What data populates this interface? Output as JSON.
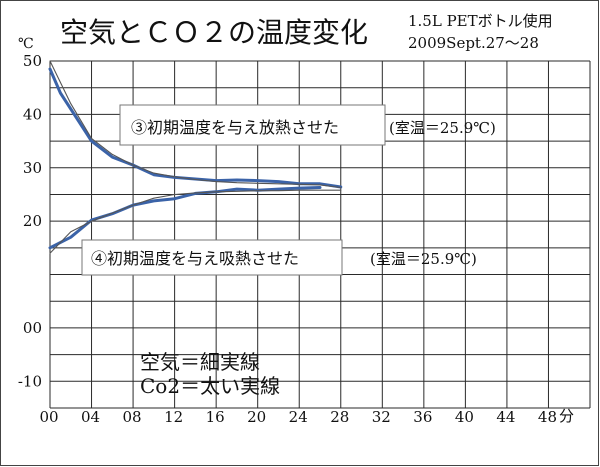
{
  "chart_data": {
    "type": "line",
    "title": "空気とＣＯ２の温度変化",
    "subtitle_lines": [
      "1.5L PETボトル使用",
      "2009Sept.27～28"
    ],
    "ylabel": "℃",
    "xunit": "分",
    "xlim": [
      0,
      52
    ],
    "ylim": [
      -15,
      50
    ],
    "grid": true,
    "x_ticks": [
      0,
      4,
      8,
      12,
      16,
      20,
      24,
      28,
      32,
      36,
      40,
      44,
      48
    ],
    "x_tick_labels": [
      "00",
      "04",
      "08",
      "12",
      "16",
      "20",
      "24",
      "28",
      "32",
      "36",
      "40",
      "44",
      "48"
    ],
    "y_ticks": [
      50,
      40,
      30,
      20,
      0,
      -10
    ],
    "y_tick_labels": [
      "50",
      "40",
      "30",
      "20",
      "00",
      "-10"
    ],
    "annotations": {
      "heat_release": "③初期温度を与え放熱させた",
      "heat_release_room": "(室温＝25.9℃)",
      "heat_absorb": "④初期温度を与え吸熱させた",
      "heat_absorb_room": "(室温＝25.9℃)",
      "legend_air": "空気＝細実線",
      "legend_co2": "Co2＝太い実線"
    },
    "series": [
      {
        "group": "cooling",
        "medium": "air",
        "style": "thin",
        "color": "#555555",
        "x": [
          0,
          2,
          4,
          6,
          8,
          10,
          12,
          14,
          16,
          18,
          20,
          22,
          24,
          26,
          28
        ],
        "y": [
          50,
          42,
          35.5,
          32.5,
          30.5,
          29,
          28.3,
          27.8,
          27.4,
          27.2,
          27.1,
          27,
          26.9,
          26.8,
          26.3
        ]
      },
      {
        "group": "cooling",
        "medium": "co2",
        "style": "thick",
        "color": "#3b63a8",
        "x": [
          0,
          1,
          2,
          4,
          6,
          8,
          10,
          12,
          14,
          16,
          18,
          20,
          22,
          24,
          26,
          28
        ],
        "y": [
          48.5,
          44,
          41,
          35,
          32,
          30.5,
          28.7,
          28.2,
          27.9,
          27.6,
          27.7,
          27.6,
          27.4,
          27,
          27,
          26.4
        ]
      },
      {
        "group": "warming",
        "medium": "air",
        "style": "thin",
        "color": "#555555",
        "x": [
          0,
          2,
          4,
          6,
          8,
          10,
          12,
          14,
          16,
          18,
          20,
          22,
          24,
          26,
          28
        ],
        "y": [
          14,
          18,
          20,
          21.5,
          23,
          24.3,
          25,
          25.3,
          25.5,
          25.6,
          25.7,
          25.7,
          25.8,
          25.8,
          25.8
        ]
      },
      {
        "group": "warming",
        "medium": "co2",
        "style": "thick",
        "color": "#3b63a8",
        "x": [
          0,
          2,
          4,
          6,
          8,
          10,
          12,
          14,
          16,
          18,
          20,
          22,
          24,
          26
        ],
        "y": [
          15,
          17,
          20.2,
          21.4,
          23,
          23.8,
          24.2,
          25.2,
          25.5,
          26,
          25.8,
          26,
          26.2,
          26.3
        ]
      }
    ]
  }
}
